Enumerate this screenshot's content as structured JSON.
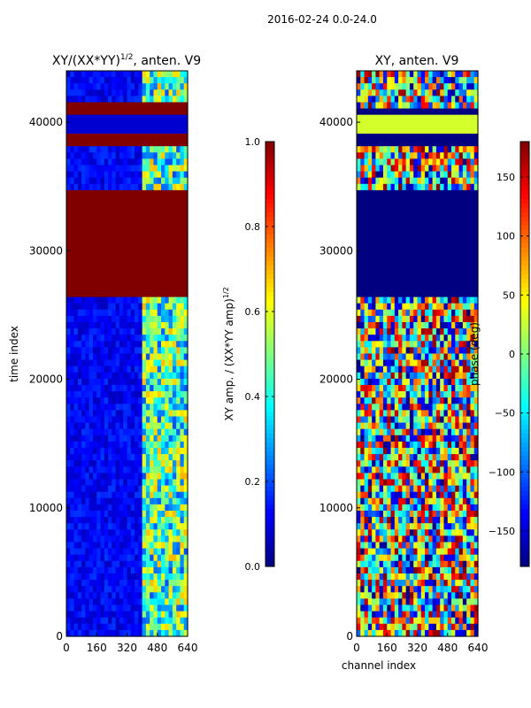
{
  "chart_data": {
    "type": "heatmap",
    "suptitle": "2016-02-24 0.0-24.0",
    "xlabel": "channel index",
    "panels": [
      {
        "title_main": "XY/(XX*YY)",
        "title_sup": "1/2",
        "title_tail": ", anten. V9",
        "ylabel": "time index",
        "xlim": [
          0,
          640
        ],
        "ylim": [
          0,
          44000
        ],
        "xticks": [
          0,
          160,
          320,
          480,
          640
        ],
        "yticks": [
          0,
          10000,
          20000,
          30000,
          40000
        ],
        "colormap": "jet",
        "colorbar": {
          "label_main": "XY amp. / (XX*YY amp)",
          "label_sup": "1/2",
          "range": [
            0,
            1
          ],
          "ticks": [
            "0.0",
            "0.2",
            "0.4",
            "0.6",
            "0.8",
            "1.0"
          ]
        },
        "time_bands": [
          {
            "from": 26500,
            "to": 34800,
            "value": 1.0
          },
          {
            "from": 38000,
            "to": 39100,
            "value": 1.0
          },
          {
            "from": 39100,
            "to": 40500,
            "value": 0.08
          },
          {
            "from": 40500,
            "to": 41500,
            "value": 1.0
          }
        ],
        "bright_channel_range": [
          400,
          640
        ]
      },
      {
        "title_main": "XY, anten. V9",
        "title_sup": "",
        "title_tail": "",
        "ylabel": "",
        "xlim": [
          0,
          640
        ],
        "ylim": [
          0,
          44000
        ],
        "xticks": [
          0,
          160,
          320,
          480,
          640
        ],
        "yticks": [
          0,
          10000,
          20000,
          30000,
          40000
        ],
        "colormap": "jet",
        "colorbar": {
          "label_main": "phase (deg)",
          "label_sup": "",
          "range": [
            -180,
            180
          ],
          "ticks": [
            "−150",
            "−100",
            "−50",
            "0",
            "50",
            "100",
            "150"
          ]
        },
        "time_bands": [
          {
            "from": 26500,
            "to": 34800,
            "value": -180
          },
          {
            "from": 37900,
            "to": 39100,
            "value": -180
          },
          {
            "from": 39100,
            "to": 40400,
            "value": 30
          },
          {
            "from": 40400,
            "to": 41300,
            "value": -180
          }
        ]
      }
    ]
  }
}
